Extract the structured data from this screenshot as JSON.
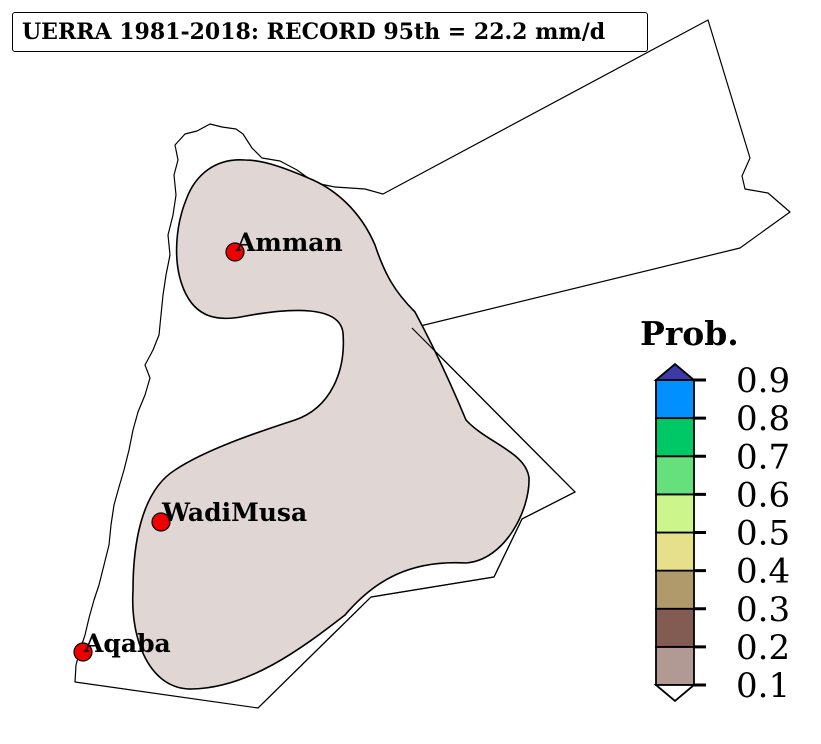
{
  "title": "UERRA 1981-2018: RECORD 95th = 22.2 mm/d",
  "cities": [
    {
      "name": "Amman"
    },
    {
      "name": "WadiMusa"
    },
    {
      "name": "Aqaba"
    }
  ],
  "legend": {
    "title": "Prob.",
    "ticks": [
      "0.9",
      "0.8",
      "0.7",
      "0.6",
      "0.5",
      "0.4",
      "0.3",
      "0.2",
      "0.1"
    ],
    "colors": [
      "#b29a94",
      "#825b52",
      "#b09a6b",
      "#e6e08a",
      "#ccf58c",
      "#65e07c",
      "#00c866",
      "#0090ff",
      "#3b3ba8"
    ],
    "under_color": "#ffffff"
  },
  "colors": {
    "shaded_region": "#e0d6d3",
    "city_marker": "#ee0000",
    "border": "#000000"
  }
}
